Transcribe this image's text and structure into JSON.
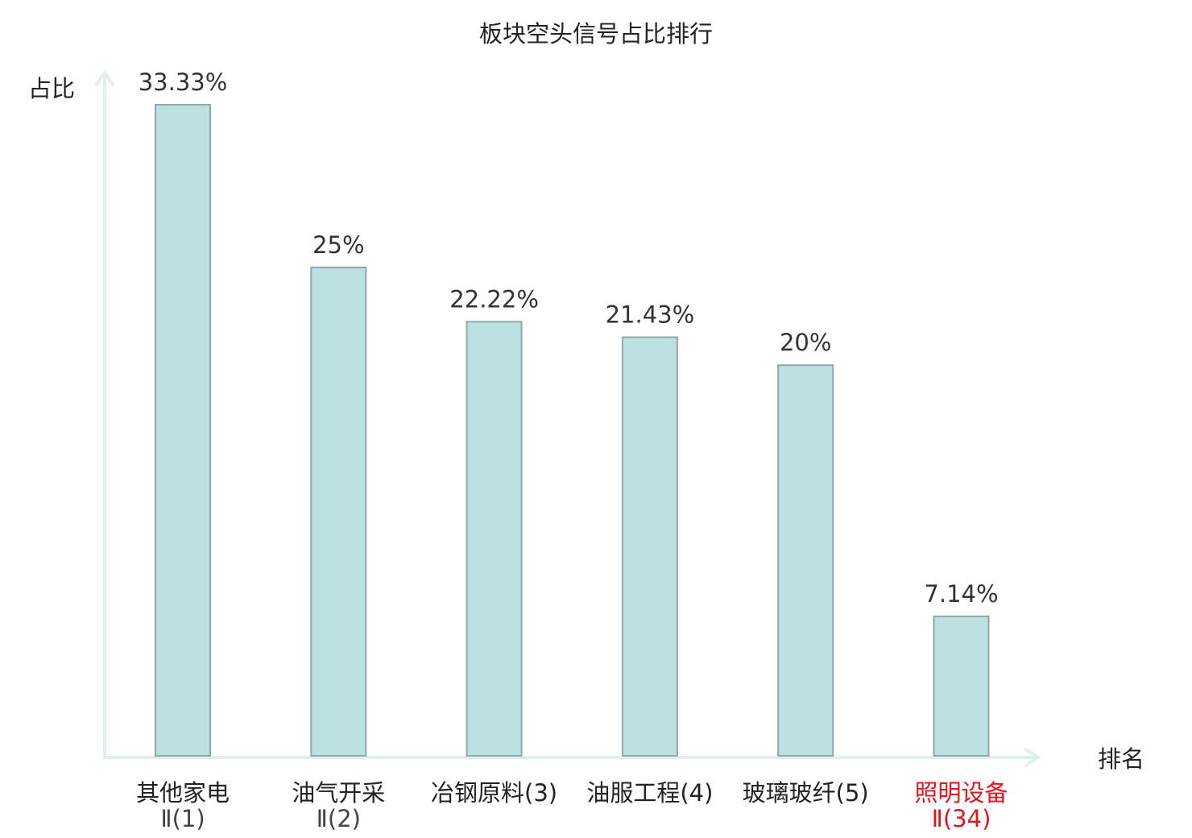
{
  "colors": {
    "bar_fill": "#bde0e3",
    "bar_stroke": "#8fa9ab",
    "axis": "#dff0ee",
    "text": "#222222",
    "value_text": "#333333",
    "sub_text": "#444444",
    "highlight": "#e0161d"
  },
  "chart_data": {
    "type": "bar",
    "title": "板块空头信号占比排行",
    "ylabel": "占比",
    "xlabel": "排名",
    "ylim": [
      0,
      35
    ],
    "grid": false,
    "categories": [
      {
        "name": "其他家电",
        "sub": "Ⅱ(1)",
        "value": 33.33,
        "label": "33.33%",
        "highlight": false
      },
      {
        "name": "油气开采",
        "sub": "Ⅱ(2)",
        "value": 25,
        "label": "25%",
        "highlight": false
      },
      {
        "name": "冶钢原料(3)",
        "sub": "",
        "value": 22.22,
        "label": "22.22%",
        "highlight": false
      },
      {
        "name": "油服工程(4)",
        "sub": "",
        "value": 21.43,
        "label": "21.43%",
        "highlight": false
      },
      {
        "name": "玻璃玻纤(5)",
        "sub": "",
        "value": 20,
        "label": "20%",
        "highlight": false
      },
      {
        "name": "照明设备",
        "sub": "Ⅱ(34)",
        "value": 7.14,
        "label": "7.14%",
        "highlight": true
      }
    ]
  }
}
